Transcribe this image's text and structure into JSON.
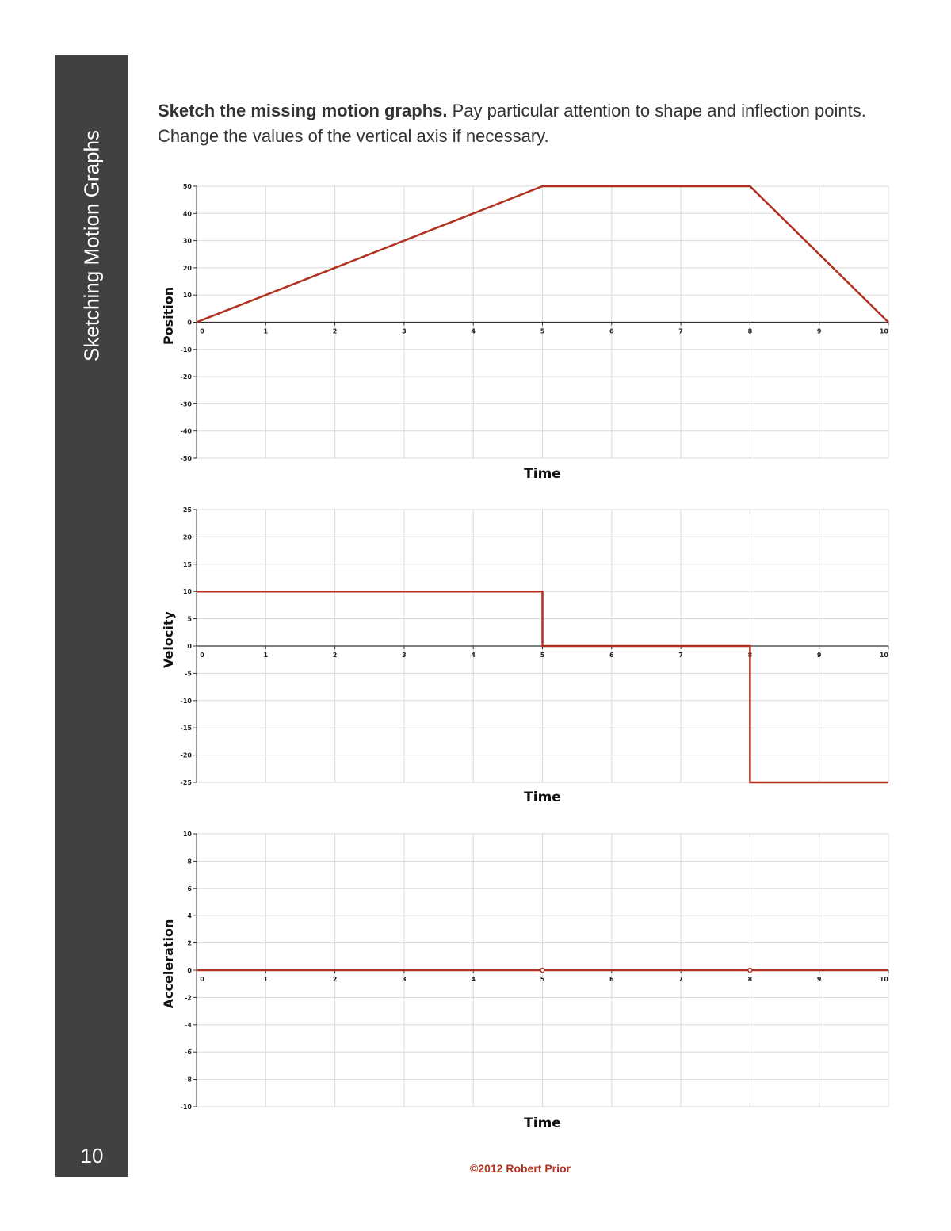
{
  "sidebar": {
    "title": "Sketching Motion Graphs",
    "page_number": "10"
  },
  "instructions": {
    "bold": "Sketch the missing motion graphs.",
    "text": " Pay particular attention to shape and inflection points. Change the values of the vertical axis if necessary."
  },
  "footer": {
    "copyright": "©2012 Robert Prior"
  },
  "colors": {
    "line": "#b1311f",
    "grid": "#d8d8d8",
    "axis": "#333333",
    "sidebar": "#414141"
  },
  "chart_data": [
    {
      "type": "line",
      "xlabel": "Time",
      "ylabel": "Position",
      "xlim": [
        0,
        10
      ],
      "ylim": [
        -50,
        50
      ],
      "x_ticks": [
        0,
        1,
        2,
        3,
        4,
        5,
        6,
        7,
        8,
        9,
        10
      ],
      "y_ticks": [
        50,
        40,
        30,
        20,
        10,
        0,
        -10,
        -20,
        -30,
        -40,
        -50
      ],
      "grid": true,
      "series": [
        {
          "x": [
            0,
            5,
            8,
            10
          ],
          "y": [
            0,
            50,
            50,
            0
          ]
        }
      ],
      "markers": []
    },
    {
      "type": "line",
      "xlabel": "Time",
      "ylabel": "Velocity",
      "xlim": [
        0,
        10
      ],
      "ylim": [
        -25,
        25
      ],
      "x_ticks": [
        0,
        1,
        2,
        3,
        4,
        5,
        6,
        7,
        8,
        9,
        10
      ],
      "y_ticks": [
        25,
        20,
        15,
        10,
        5,
        0,
        -5,
        -10,
        -15,
        -20,
        -25
      ],
      "grid": true,
      "series": [
        {
          "x": [
            0,
            5,
            5,
            8,
            8,
            10
          ],
          "y": [
            10,
            10,
            0,
            0,
            -25,
            -25
          ]
        }
      ],
      "markers": []
    },
    {
      "type": "line",
      "xlabel": "Time",
      "ylabel": "Acceleration",
      "xlim": [
        0,
        10
      ],
      "ylim": [
        -10,
        10
      ],
      "x_ticks": [
        0,
        1,
        2,
        3,
        4,
        5,
        6,
        7,
        8,
        9,
        10
      ],
      "y_ticks": [
        10,
        8,
        6,
        4,
        2,
        0,
        -2,
        -4,
        -6,
        -8,
        -10
      ],
      "grid": true,
      "series": [
        {
          "x": [
            0,
            10
          ],
          "y": [
            0,
            0
          ]
        }
      ],
      "markers": [
        {
          "x": 5,
          "y": 0
        },
        {
          "x": 8,
          "y": 0
        }
      ]
    }
  ]
}
